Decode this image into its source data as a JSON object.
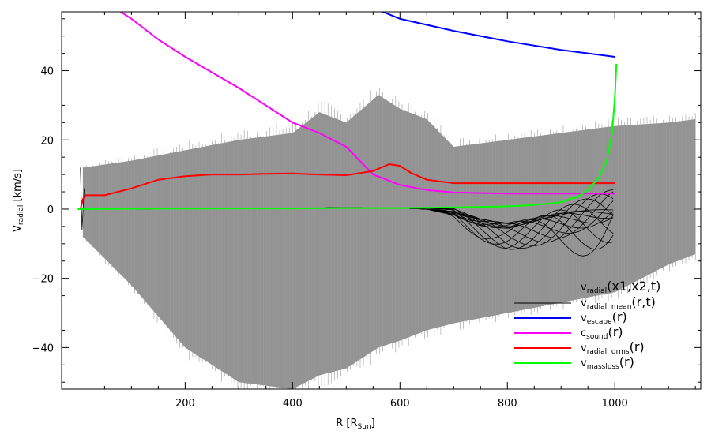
{
  "chart_data": {
    "type": "line",
    "xlabel": "R [R",
    "xlabel_sub": "Sun",
    "xlabel_close": "]",
    "ylabel": "V",
    "ylabel_sub": "radial",
    "ylabel_unit": " [km/s]",
    "xlim": [
      -30,
      1160
    ],
    "ylim": [
      -52,
      57
    ],
    "xticks": [
      200,
      400,
      600,
      800,
      1000
    ],
    "xtick_labels": [
      "200",
      "400",
      "600",
      "800",
      "1000"
    ],
    "yticks": [
      -40,
      -20,
      0,
      20,
      40
    ],
    "ytick_labels": [
      "−40",
      "−20",
      "0",
      "20",
      "40"
    ],
    "legend_position": "bottom-right",
    "series": [
      {
        "name": "v_radial(x1,x2,t)",
        "legend_main": "v",
        "legend_sub": "radial",
        "legend_rest": "(x1,x2,t)",
        "color": "#808080",
        "kind": "scatter-envelope",
        "x": [
          10,
          100,
          200,
          300,
          400,
          450,
          500,
          560,
          600,
          650,
          700,
          800,
          900,
          1000,
          1100,
          1150
        ],
        "upper": [
          12,
          14,
          17,
          20,
          22,
          28,
          25,
          33,
          29,
          26,
          18,
          20,
          22,
          24,
          25,
          26
        ],
        "lower": [
          -8,
          -22,
          -40,
          -50,
          -52,
          -48,
          -46,
          -40,
          -38,
          -35,
          -33,
          -30,
          -27,
          -24,
          -16,
          -13
        ]
      },
      {
        "name": "v_radial, mean(r,t)",
        "legend_main": "v",
        "legend_sub": "radial, mean",
        "legend_rest": "(r,t)",
        "color": "#000000",
        "kind": "bundle",
        "x": [
          5,
          100,
          200,
          300,
          400,
          500,
          600,
          650,
          700,
          750,
          800,
          850,
          900,
          950,
          1000
        ],
        "y": [
          0,
          0,
          0.2,
          0.2,
          0.3,
          0.4,
          0.3,
          0,
          -1,
          -3,
          -4,
          -3,
          -2,
          -1,
          0
        ]
      },
      {
        "name": "v_escape(r)",
        "legend_main": "v",
        "legend_sub": "escape",
        "legend_rest": "(r)",
        "color": "#0000ff",
        "x": [
          560,
          600,
          700,
          800,
          900,
          1000
        ],
        "y": [
          57.5,
          55,
          51.5,
          48.5,
          46,
          44
        ]
      },
      {
        "name": "c_sound(r)",
        "legend_main": "c",
        "legend_sub": "sound",
        "legend_rest": "(r)",
        "color": "#ff00ff",
        "x": [
          80,
          100,
          150,
          200,
          250,
          300,
          350,
          400,
          450,
          500,
          550,
          600,
          650,
          700,
          800,
          900,
          1000
        ],
        "y": [
          57,
          55,
          49,
          44,
          39.5,
          35,
          30,
          25,
          22,
          18,
          10,
          7,
          5.5,
          4.8,
          4.5,
          4.5,
          4.5
        ]
      },
      {
        "name": "v_radial, drms(r)",
        "legend_main": "v",
        "legend_sub": "radial, drms",
        "legend_rest": "(r)",
        "color": "#ff0000",
        "x": [
          5,
          10,
          15,
          50,
          100,
          150,
          200,
          250,
          300,
          350,
          400,
          450,
          500,
          550,
          580,
          600,
          620,
          650,
          700,
          800,
          900,
          1000
        ],
        "y": [
          0,
          3,
          4,
          4,
          6,
          8.5,
          9.5,
          10,
          10,
          10.2,
          10.3,
          10,
          9.8,
          11,
          13,
          12.5,
          10.5,
          8.5,
          7.5,
          7.5,
          7.5,
          7.5
        ]
      },
      {
        "name": "v_massloss(r)",
        "legend_main": "v",
        "legend_sub": "massloss",
        "legend_rest": "(r)",
        "color": "#00ff00",
        "x": [
          0,
          100,
          200,
          300,
          400,
          500,
          600,
          700,
          800,
          850,
          900,
          930,
          950,
          970,
          985,
          995,
          1000,
          1003
        ],
        "y": [
          0,
          0.1,
          0.15,
          0.2,
          0.2,
          0.3,
          0.3,
          0.5,
          0.8,
          1.2,
          2,
          3.5,
          5.5,
          9,
          14,
          22,
          32,
          42
        ]
      }
    ]
  }
}
